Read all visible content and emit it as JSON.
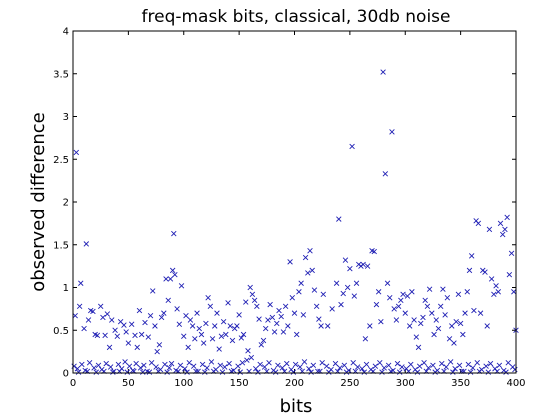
{
  "chart_data": {
    "type": "scatter",
    "title": "freq-mask bits, classical, 30db noise",
    "xlabel": "bits",
    "ylabel": "observed difference",
    "xlim": [
      0,
      400
    ],
    "ylim": [
      0,
      4
    ],
    "x_ticks": [
      "0",
      "50",
      "100",
      "150",
      "200",
      "250",
      "300",
      "350",
      "400"
    ],
    "y_ticks": [
      "0",
      "0.5",
      "1",
      "1.5",
      "2",
      "2.5",
      "3",
      "3.5",
      "4"
    ],
    "grid": false,
    "marker": "x",
    "color": "#1f1fb4",
    "points": [
      [
        2,
        0.67
      ],
      [
        3,
        2.58
      ],
      [
        6,
        0.78
      ],
      [
        7,
        1.05
      ],
      [
        10,
        0.52
      ],
      [
        12,
        1.51
      ],
      [
        14,
        0.62
      ],
      [
        16,
        0.73
      ],
      [
        18,
        0.72
      ],
      [
        20,
        0.45
      ],
      [
        22,
        0.44
      ],
      [
        25,
        0.78
      ],
      [
        27,
        0.65
      ],
      [
        29,
        0.44
      ],
      [
        31,
        0.69
      ],
      [
        33,
        0.3
      ],
      [
        35,
        0.62
      ],
      [
        38,
        0.5
      ],
      [
        40,
        0.43
      ],
      [
        43,
        0.6
      ],
      [
        46,
        0.56
      ],
      [
        48,
        0.48
      ],
      [
        50,
        0.35
      ],
      [
        53,
        0.57
      ],
      [
        56,
        0.44
      ],
      [
        58,
        0.3
      ],
      [
        60,
        0.73
      ],
      [
        62,
        0.45
      ],
      [
        65,
        0.59
      ],
      [
        68,
        0.42
      ],
      [
        70,
        0.67
      ],
      [
        72,
        0.96
      ],
      [
        74,
        0.55
      ],
      [
        76,
        0.25
      ],
      [
        78,
        0.33
      ],
      [
        80,
        0.65
      ],
      [
        82,
        0.7
      ],
      [
        84,
        1.1
      ],
      [
        86,
        0.85
      ],
      [
        88,
        1.1
      ],
      [
        90,
        1.2
      ],
      [
        91,
        1.63
      ],
      [
        92,
        1.15
      ],
      [
        94,
        0.75
      ],
      [
        96,
        0.57
      ],
      [
        98,
        1.02
      ],
      [
        100,
        0.43
      ],
      [
        102,
        0.67
      ],
      [
        104,
        0.3
      ],
      [
        106,
        0.62
      ],
      [
        108,
        0.55
      ],
      [
        110,
        0.4
      ],
      [
        112,
        0.7
      ],
      [
        114,
        0.52
      ],
      [
        116,
        0.45
      ],
      [
        118,
        0.35
      ],
      [
        120,
        0.58
      ],
      [
        122,
        0.88
      ],
      [
        124,
        0.78
      ],
      [
        126,
        0.4
      ],
      [
        128,
        0.55
      ],
      [
        130,
        0.7
      ],
      [
        132,
        0.28
      ],
      [
        134,
        0.43
      ],
      [
        136,
        0.6
      ],
      [
        138,
        0.45
      ],
      [
        140,
        0.82
      ],
      [
        142,
        0.55
      ],
      [
        144,
        0.38
      ],
      [
        146,
        0.52
      ],
      [
        148,
        0.55
      ],
      [
        150,
        0.68
      ],
      [
        152,
        0.41
      ],
      [
        154,
        0.45
      ],
      [
        156,
        0.83
      ],
      [
        158,
        0.26
      ],
      [
        160,
        1.0
      ],
      [
        162,
        0.92
      ],
      [
        164,
        0.85
      ],
      [
        166,
        0.78
      ],
      [
        168,
        0.63
      ],
      [
        170,
        0.33
      ],
      [
        172,
        0.38
      ],
      [
        174,
        0.52
      ],
      [
        176,
        0.62
      ],
      [
        178,
        0.8
      ],
      [
        180,
        0.65
      ],
      [
        182,
        0.48
      ],
      [
        184,
        0.58
      ],
      [
        186,
        0.73
      ],
      [
        188,
        0.66
      ],
      [
        190,
        0.48
      ],
      [
        192,
        0.78
      ],
      [
        194,
        0.55
      ],
      [
        196,
        1.3
      ],
      [
        198,
        0.88
      ],
      [
        200,
        0.7
      ],
      [
        202,
        0.45
      ],
      [
        204,
        0.95
      ],
      [
        206,
        1.05
      ],
      [
        208,
        0.68
      ],
      [
        210,
        1.35
      ],
      [
        212,
        1.17
      ],
      [
        214,
        1.43
      ],
      [
        216,
        1.2
      ],
      [
        218,
        0.97
      ],
      [
        220,
        0.78
      ],
      [
        222,
        0.63
      ],
      [
        224,
        0.55
      ],
      [
        226,
        0.92
      ],
      [
        230,
        0.55
      ],
      [
        234,
        0.75
      ],
      [
        238,
        1.05
      ],
      [
        240,
        1.8
      ],
      [
        242,
        0.8
      ],
      [
        244,
        0.93
      ],
      [
        246,
        1.32
      ],
      [
        248,
        1.0
      ],
      [
        250,
        1.22
      ],
      [
        252,
        2.65
      ],
      [
        254,
        0.9
      ],
      [
        256,
        1.05
      ],
      [
        258,
        1.27
      ],
      [
        260,
        1.25
      ],
      [
        262,
        1.27
      ],
      [
        264,
        0.4
      ],
      [
        266,
        1.25
      ],
      [
        268,
        0.55
      ],
      [
        270,
        1.43
      ],
      [
        272,
        1.42
      ],
      [
        274,
        0.8
      ],
      [
        276,
        0.95
      ],
      [
        278,
        0.6
      ],
      [
        280,
        3.52
      ],
      [
        282,
        2.33
      ],
      [
        284,
        1.05
      ],
      [
        286,
        0.88
      ],
      [
        288,
        2.82
      ],
      [
        290,
        0.75
      ],
      [
        292,
        0.62
      ],
      [
        294,
        0.78
      ],
      [
        296,
        0.85
      ],
      [
        298,
        0.92
      ],
      [
        300,
        0.7
      ],
      [
        302,
        0.9
      ],
      [
        304,
        0.55
      ],
      [
        306,
        0.95
      ],
      [
        308,
        0.62
      ],
      [
        310,
        0.42
      ],
      [
        312,
        0.3
      ],
      [
        314,
        0.58
      ],
      [
        316,
        0.65
      ],
      [
        318,
        0.85
      ],
      [
        320,
        0.78
      ],
      [
        322,
        0.98
      ],
      [
        324,
        0.7
      ],
      [
        326,
        0.45
      ],
      [
        328,
        0.62
      ],
      [
        330,
        0.52
      ],
      [
        332,
        0.78
      ],
      [
        334,
        0.98
      ],
      [
        336,
        0.68
      ],
      [
        338,
        0.88
      ],
      [
        340,
        0.4
      ],
      [
        342,
        0.55
      ],
      [
        344,
        0.35
      ],
      [
        346,
        0.6
      ],
      [
        348,
        0.92
      ],
      [
        350,
        0.58
      ],
      [
        352,
        0.45
      ],
      [
        354,
        0.7
      ],
      [
        356,
        0.95
      ],
      [
        358,
        1.2
      ],
      [
        360,
        1.37
      ],
      [
        362,
        0.73
      ],
      [
        364,
        1.78
      ],
      [
        366,
        1.75
      ],
      [
        368,
        0.7
      ],
      [
        370,
        1.2
      ],
      [
        372,
        1.18
      ],
      [
        374,
        0.55
      ],
      [
        376,
        1.68
      ],
      [
        378,
        1.1
      ],
      [
        380,
        0.92
      ],
      [
        382,
        1.02
      ],
      [
        384,
        0.95
      ],
      [
        386,
        1.75
      ],
      [
        388,
        1.62
      ],
      [
        390,
        1.68
      ],
      [
        392,
        1.82
      ],
      [
        394,
        1.15
      ],
      [
        396,
        1.4
      ],
      [
        398,
        0.95
      ],
      [
        400,
        0.5
      ],
      [
        1,
        0.08
      ],
      [
        4,
        0.05
      ],
      [
        8,
        0.1
      ],
      [
        11,
        0.03
      ],
      [
        15,
        0.12
      ],
      [
        19,
        0.06
      ],
      [
        23,
        0.09
      ],
      [
        26,
        0.04
      ],
      [
        30,
        0.11
      ],
      [
        34,
        0.07
      ],
      [
        37,
        0.02
      ],
      [
        41,
        0.1
      ],
      [
        44,
        0.05
      ],
      [
        47,
        0.13
      ],
      [
        51,
        0.08
      ],
      [
        54,
        0.03
      ],
      [
        57,
        0.11
      ],
      [
        61,
        0.06
      ],
      [
        64,
        0.09
      ],
      [
        67,
        0.02
      ],
      [
        71,
        0.12
      ],
      [
        75,
        0.07
      ],
      [
        79,
        0.04
      ],
      [
        83,
        0.1
      ],
      [
        87,
        0.06
      ],
      [
        89,
        0.11
      ],
      [
        93,
        0.03
      ],
      [
        97,
        0.09
      ],
      [
        101,
        0.05
      ],
      [
        105,
        0.12
      ],
      [
        109,
        0.08
      ],
      [
        113,
        0.02
      ],
      [
        117,
        0.1
      ],
      [
        121,
        0.06
      ],
      [
        125,
        0.13
      ],
      [
        129,
        0.04
      ],
      [
        133,
        0.09
      ],
      [
        137,
        0.07
      ],
      [
        141,
        0.11
      ],
      [
        145,
        0.03
      ],
      [
        149,
        0.08
      ],
      [
        153,
        0.12
      ],
      [
        157,
        0.15
      ],
      [
        161,
        0.18
      ],
      [
        165,
        0.05
      ],
      [
        169,
        0.1
      ],
      [
        173,
        0.07
      ],
      [
        177,
        0.12
      ],
      [
        181,
        0.03
      ],
      [
        185,
        0.09
      ],
      [
        189,
        0.06
      ],
      [
        193,
        0.11
      ],
      [
        197,
        0.04
      ],
      [
        201,
        0.1
      ],
      [
        205,
        0.07
      ],
      [
        209,
        0.13
      ],
      [
        213,
        0.05
      ],
      [
        217,
        0.09
      ],
      [
        221,
        0.02
      ],
      [
        225,
        0.12
      ],
      [
        229,
        0.08
      ],
      [
        233,
        0.04
      ],
      [
        237,
        0.11
      ],
      [
        241,
        0.06
      ],
      [
        245,
        0.09
      ],
      [
        249,
        0.03
      ],
      [
        253,
        0.12
      ],
      [
        257,
        0.07
      ],
      [
        261,
        0.05
      ],
      [
        265,
        0.1
      ],
      [
        269,
        0.04
      ],
      [
        273,
        0.08
      ],
      [
        277,
        0.12
      ],
      [
        281,
        0.06
      ],
      [
        285,
        0.09
      ],
      [
        289,
        0.03
      ],
      [
        293,
        0.11
      ],
      [
        297,
        0.07
      ],
      [
        301,
        0.05
      ],
      [
        305,
        0.1
      ],
      [
        309,
        0.04
      ],
      [
        313,
        0.08
      ],
      [
        317,
        0.12
      ],
      [
        321,
        0.06
      ],
      [
        325,
        0.09
      ],
      [
        329,
        0.03
      ],
      [
        333,
        0.11
      ],
      [
        337,
        0.07
      ],
      [
        341,
        0.13
      ],
      [
        345,
        0.05
      ],
      [
        349,
        0.09
      ],
      [
        353,
        0.02
      ],
      [
        357,
        0.1
      ],
      [
        361,
        0.06
      ],
      [
        365,
        0.12
      ],
      [
        369,
        0.04
      ],
      [
        373,
        0.08
      ],
      [
        377,
        0.11
      ],
      [
        381,
        0.05
      ],
      [
        385,
        0.09
      ],
      [
        389,
        0.03
      ],
      [
        393,
        0.12
      ],
      [
        397,
        0.07
      ],
      [
        399,
        0.04
      ],
      [
        5,
        0.01
      ],
      [
        13,
        0.02
      ],
      [
        21,
        0.01
      ],
      [
        28,
        0.02
      ],
      [
        36,
        0.01
      ],
      [
        42,
        0.02
      ],
      [
        49,
        0.01
      ],
      [
        55,
        0.02
      ],
      [
        63,
        0.01
      ],
      [
        69,
        0.01
      ],
      [
        77,
        0.02
      ],
      [
        85,
        0.01
      ],
      [
        95,
        0.02
      ],
      [
        103,
        0.01
      ],
      [
        111,
        0.02
      ],
      [
        119,
        0.01
      ],
      [
        127,
        0.02
      ],
      [
        135,
        0.01
      ],
      [
        143,
        0.02
      ],
      [
        151,
        0.01
      ],
      [
        159,
        0.02
      ],
      [
        167,
        0.01
      ],
      [
        175,
        0.02
      ],
      [
        183,
        0.01
      ],
      [
        191,
        0.02
      ],
      [
        199,
        0.01
      ],
      [
        207,
        0.02
      ],
      [
        215,
        0.01
      ],
      [
        223,
        0.02
      ],
      [
        231,
        0.01
      ],
      [
        239,
        0.02
      ],
      [
        247,
        0.01
      ],
      [
        255,
        0.02
      ],
      [
        263,
        0.01
      ],
      [
        271,
        0.02
      ],
      [
        279,
        0.01
      ],
      [
        287,
        0.02
      ],
      [
        295,
        0.01
      ],
      [
        303,
        0.02
      ],
      [
        311,
        0.01
      ],
      [
        319,
        0.02
      ],
      [
        327,
        0.01
      ],
      [
        335,
        0.02
      ],
      [
        343,
        0.01
      ],
      [
        351,
        0.02
      ],
      [
        359,
        0.01
      ],
      [
        367,
        0.02
      ],
      [
        375,
        0.01
      ],
      [
        383,
        0.02
      ],
      [
        391,
        0.01
      ]
    ]
  }
}
